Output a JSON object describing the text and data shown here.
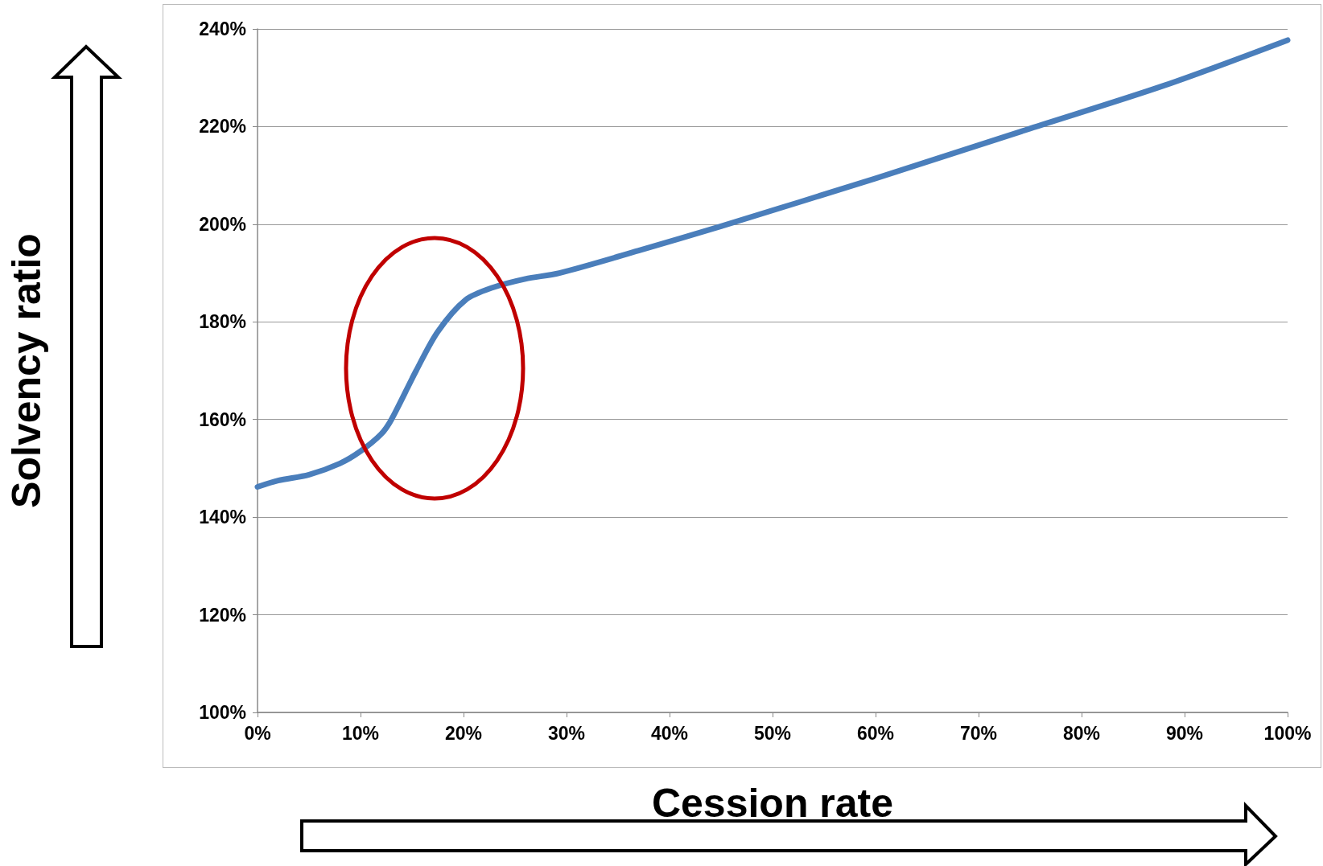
{
  "chart_data": {
    "type": "line",
    "xlabel": "Cession rate",
    "ylabel": "Solvency ratio",
    "x": [
      0,
      2,
      5,
      8,
      10,
      12,
      13,
      15.4,
      17.5,
      20.2,
      22.8,
      26,
      29.3,
      37,
      45,
      60,
      75,
      88,
      100
    ],
    "series": [
      {
        "color": "#4a7ebb",
        "values": [
          146.2,
          147.5,
          148.7,
          151,
          153.5,
          157,
          160,
          170,
          178,
          184.5,
          187,
          188.8,
          190,
          194.6,
          199.6,
          209.4,
          219.6,
          228.4,
          237.7
        ]
      }
    ],
    "xlim": [
      0,
      100
    ],
    "xticks": [
      {
        "value": 0,
        "label": "0%"
      },
      {
        "value": 10,
        "label": "10%"
      },
      {
        "value": 20,
        "label": "20%"
      },
      {
        "value": 30,
        "label": "30%"
      },
      {
        "value": 40,
        "label": "40%"
      },
      {
        "value": 50,
        "label": "50%"
      },
      {
        "value": 60,
        "label": "60%"
      },
      {
        "value": 70,
        "label": "70%"
      },
      {
        "value": 80,
        "label": "80%"
      },
      {
        "value": 90,
        "label": "90%"
      },
      {
        "value": 100,
        "label": "100%"
      }
    ],
    "ylim": [
      100,
      240
    ],
    "yticks": [
      {
        "value": 100,
        "label": "100%"
      },
      {
        "value": 120,
        "label": "120%"
      },
      {
        "value": 140,
        "label": "140%"
      },
      {
        "value": 160,
        "label": "160%"
      },
      {
        "value": 180,
        "label": "180%"
      },
      {
        "value": 200,
        "label": "200%"
      },
      {
        "value": 220,
        "label": "220%"
      },
      {
        "value": 240,
        "label": "240%"
      }
    ],
    "grid": "y"
  }
}
